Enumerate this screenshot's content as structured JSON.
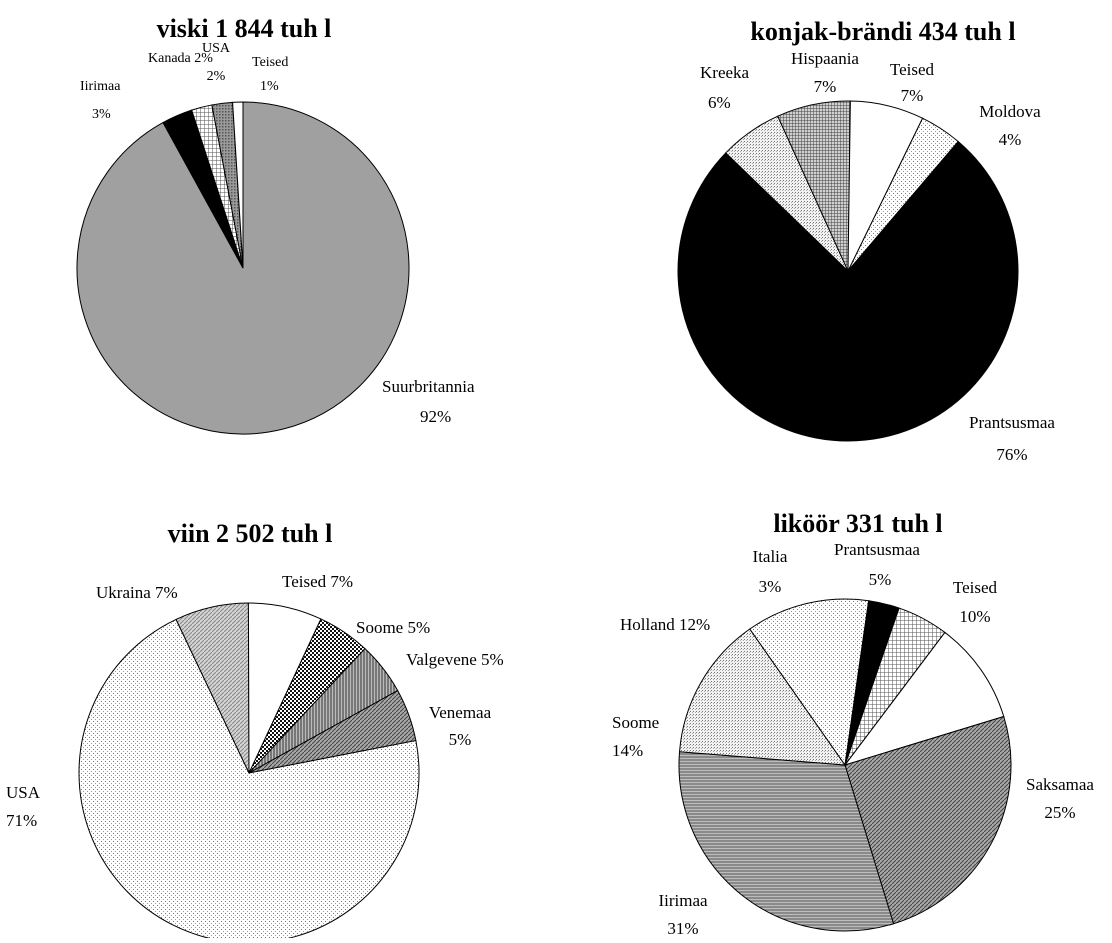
{
  "chart_data": [
    {
      "type": "pie",
      "title": "viski 1 844 tuh l",
      "start_angle_deg": 0,
      "slices": [
        {
          "name": "Suurbritannia",
          "value": 92,
          "label": "92%",
          "fill": "#a0a0a0"
        },
        {
          "name": "Iirimaa",
          "value": 3,
          "label": "3%",
          "fill": "#000000"
        },
        {
          "name": "Kanada",
          "value": 2,
          "label": "2%",
          "fill": "pattern-grid"
        },
        {
          "name": "USA",
          "value": 2,
          "label": "2%",
          "fill": "pattern-dots-dark"
        },
        {
          "name": "Teised",
          "value": 1,
          "label": "1%",
          "fill": "#ffffff"
        }
      ]
    },
    {
      "type": "pie",
      "title": "konjak-brändi 434 tuh l",
      "start_angle_deg": 26,
      "slices": [
        {
          "name": "Moldova",
          "value": 4,
          "label": "4%",
          "fill": "pattern-dots-light"
        },
        {
          "name": "Prantsusmaa",
          "value": 76,
          "label": "76%",
          "fill": "#000000"
        },
        {
          "name": "Kreeka",
          "value": 6,
          "label": "6%",
          "fill": "pattern-fine"
        },
        {
          "name": "Hispaania",
          "value": 7,
          "label": "7%",
          "fill": "pattern-grid-dark"
        },
        {
          "name": "Teised",
          "value": 7,
          "label": "7%",
          "fill": "#ffffff"
        }
      ]
    },
    {
      "type": "pie",
      "title": "viin 2 502 tuh l",
      "start_angle_deg": 25,
      "slices": [
        {
          "name": "Soome",
          "value": 5,
          "label": "5%",
          "fill": "pattern-check-dark"
        },
        {
          "name": "Valgevene",
          "value": 5,
          "label": "5%",
          "fill": "pattern-vlines"
        },
        {
          "name": "Venemaa",
          "value": 5,
          "label": "5%",
          "fill": "pattern-diag-dark"
        },
        {
          "name": "USA",
          "value": 71,
          "label": "71%",
          "fill": "pattern-dots-light"
        },
        {
          "name": "Ukraina",
          "value": 7,
          "label": "7%",
          "fill": "pattern-diag-light"
        },
        {
          "name": "Teised",
          "value": 7,
          "label": "7%",
          "fill": "#ffffff"
        }
      ]
    },
    {
      "type": "pie",
      "title": "liköör 331 tuh l",
      "start_angle_deg": 19,
      "slices": [
        {
          "name": "Prantsusmaa",
          "value": 5,
          "label": "5%",
          "fill": "pattern-grid"
        },
        {
          "name": "Teised",
          "value": 10,
          "label": "10%",
          "fill": "#ffffff"
        },
        {
          "name": "Saksamaa",
          "value": 25,
          "label": "25%",
          "fill": "pattern-diag-dark"
        },
        {
          "name": "Iirimaa",
          "value": 31,
          "label": "31%",
          "fill": "pattern-hlines"
        },
        {
          "name": "Soome",
          "value": 14,
          "label": "14%",
          "fill": "pattern-fine"
        },
        {
          "name": "Holland",
          "value": 12,
          "label": "12%",
          "fill": "pattern-dots-light"
        },
        {
          "name": "Italia",
          "value": 3,
          "label": "3%",
          "fill": "#000000"
        }
      ]
    }
  ],
  "labels": {
    "viski": {
      "suurbritannia": "Suurbritannia",
      "suurbritannia_pct": "92%",
      "iirimaa": "Iirimaa",
      "iirimaa_pct": "3%",
      "kanada": "Kanada 2%",
      "usa": "USA",
      "usa_pct": "2%",
      "teised": "Teised",
      "teised_pct": "1%"
    },
    "konjak": {
      "kreeka": "Kreeka",
      "kreeka_pct": "6%",
      "hispaania": "Hispaania",
      "hispaania_pct": "7%",
      "teised": "Teised",
      "teised_pct": "7%",
      "moldova": "Moldova",
      "moldova_pct": "4%",
      "prantsusmaa": "Prantsusmaa",
      "prantsusmaa_pct": "76%"
    },
    "viin": {
      "ukraina": "Ukraina 7%",
      "teised": "Teised 7%",
      "soome": "Soome 5%",
      "valgevene": "Valgevene 5%",
      "venemaa": "Venemaa",
      "venemaa_pct": "5%",
      "usa": "USA",
      "usa_pct": "71%"
    },
    "likoor": {
      "italia": "Italia",
      "italia_pct": "3%",
      "prantsusmaa": "Prantsusmaa",
      "prantsusmaa_pct": "5%",
      "teised": "Teised",
      "teised_pct": "10%",
      "holland": "Holland 12%",
      "soome": "Soome",
      "soome_pct": "14%",
      "saksamaa": "Saksamaa",
      "saksamaa_pct": "25%",
      "iirimaa": "Iirimaa",
      "iirimaa_pct": "31%"
    }
  }
}
